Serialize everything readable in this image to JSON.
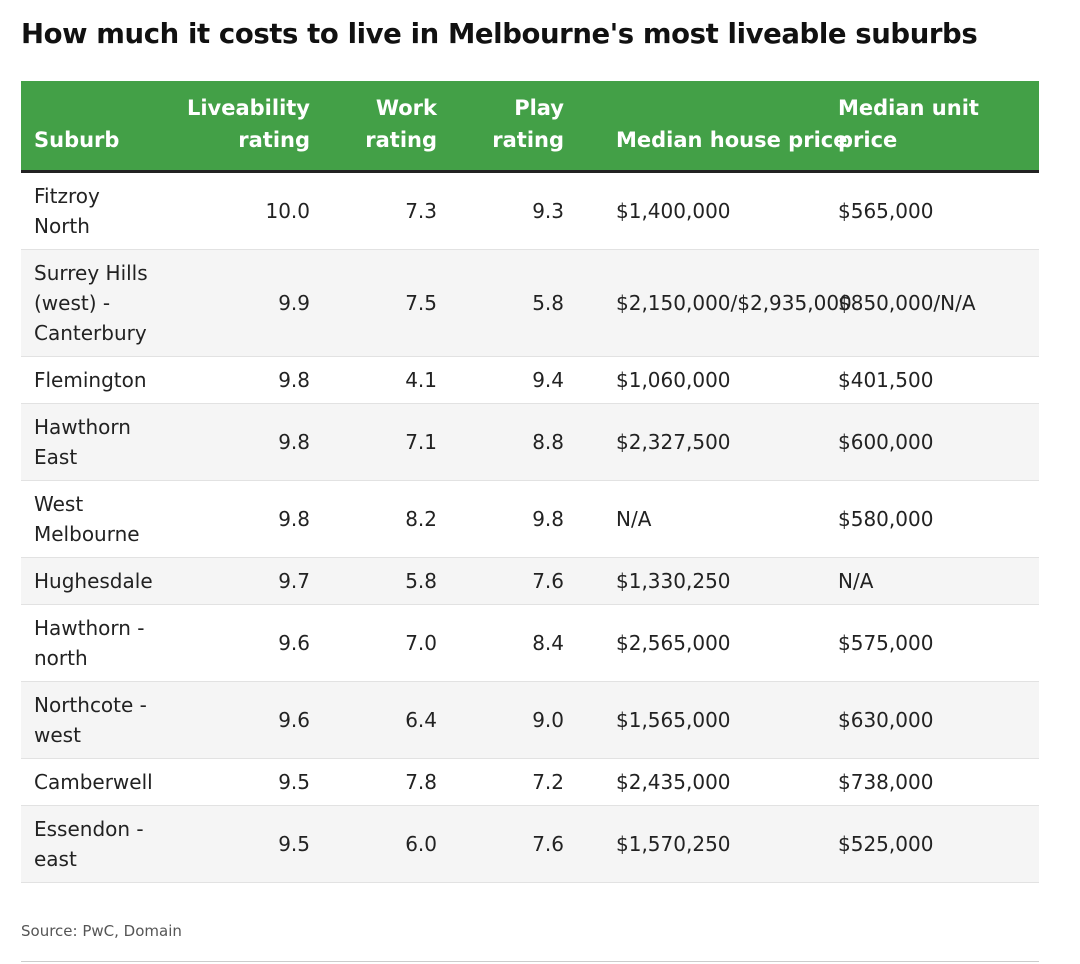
{
  "title": "How much it costs to live in Melbourne's most liveable suburbs",
  "source": "Source: PwC, Domain",
  "colors": {
    "header_bg": "#43a047",
    "header_text": "#ffffff",
    "stripe": "#f5f5f5"
  },
  "chart_data": {
    "type": "table",
    "title": "How much it costs to live in Melbourne's most liveable suburbs",
    "columns": [
      {
        "key": "suburb",
        "lines": [
          "Suburb"
        ]
      },
      {
        "key": "liveability",
        "lines": [
          "Liveability",
          "rating"
        ]
      },
      {
        "key": "work",
        "lines": [
          "Work",
          "rating"
        ]
      },
      {
        "key": "play",
        "lines": [
          "Play",
          "rating"
        ]
      },
      {
        "key": "house",
        "lines": [
          "Median house price"
        ]
      },
      {
        "key": "unit",
        "lines": [
          "Median unit",
          "price"
        ]
      }
    ],
    "rows": [
      {
        "suburb": [
          "Fitzroy",
          "North"
        ],
        "liveability": "10.0",
        "work": "7.3",
        "play": "9.3",
        "house": "$1,400,000",
        "unit": "$565,000"
      },
      {
        "suburb": [
          "Surrey Hills",
          "(west) -",
          "Canterbury"
        ],
        "liveability": "9.9",
        "work": "7.5",
        "play": "5.8",
        "house": "$2,150,000/$2,935,000",
        "unit": "$850,000/N/A"
      },
      {
        "suburb": [
          "Flemington"
        ],
        "liveability": "9.8",
        "work": "4.1",
        "play": "9.4",
        "house": "$1,060,000",
        "unit": "$401,500"
      },
      {
        "suburb": [
          "Hawthorn",
          "East"
        ],
        "liveability": "9.8",
        "work": "7.1",
        "play": "8.8",
        "house": "$2,327,500",
        "unit": "$600,000"
      },
      {
        "suburb": [
          "West",
          "Melbourne"
        ],
        "liveability": "9.8",
        "work": "8.2",
        "play": "9.8",
        "house": "N/A",
        "unit": "$580,000"
      },
      {
        "suburb": [
          "Hughesdale"
        ],
        "liveability": "9.7",
        "work": "5.8",
        "play": "7.6",
        "house": "$1,330,250",
        "unit": "N/A"
      },
      {
        "suburb": [
          "Hawthorn -",
          "north"
        ],
        "liveability": "9.6",
        "work": "7.0",
        "play": "8.4",
        "house": "$2,565,000",
        "unit": "$575,000"
      },
      {
        "suburb": [
          "Northcote -",
          "west"
        ],
        "liveability": "9.6",
        "work": "6.4",
        "play": "9.0",
        "house": "$1,565,000",
        "unit": "$630,000"
      },
      {
        "suburb": [
          "Camberwell"
        ],
        "liveability": "9.5",
        "work": "7.8",
        "play": "7.2",
        "house": "$2,435,000",
        "unit": "$738,000"
      },
      {
        "suburb": [
          "Essendon -",
          "east"
        ],
        "liveability": "9.5",
        "work": "6.0",
        "play": "7.6",
        "house": "$1,570,250",
        "unit": "$525,000"
      }
    ]
  }
}
